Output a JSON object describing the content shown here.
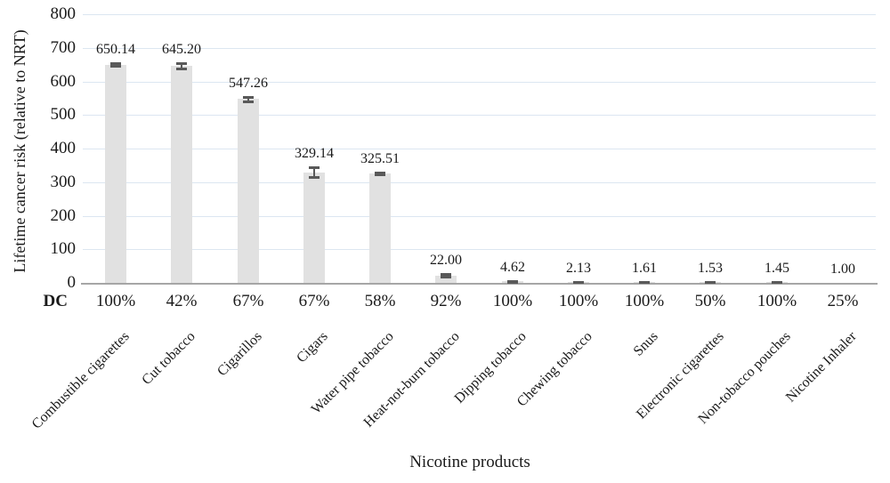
{
  "chart_data": {
    "type": "bar",
    "title": "",
    "xlabel": "Nicotine products",
    "ylabel": "Lifetime cancer risk (relative to NRT)",
    "ylim": [
      0,
      800
    ],
    "yticks": [
      0,
      100,
      200,
      300,
      400,
      500,
      600,
      700,
      800
    ],
    "grid": true,
    "legend": "none",
    "categories": [
      "Combustible cigarettes",
      "Cut tobacco",
      "Cigarillos",
      "Cigars",
      "Water pipe tobacco",
      "Heat-not-burn tobacco",
      "Dipping tobacco",
      "Chewing tobacco",
      "Snus",
      "Electronic cigarettes",
      "Non-tobacco pouches",
      "Nicotine Inhaler"
    ],
    "values": [
      650.14,
      645.2,
      547.26,
      329.14,
      325.51,
      22.0,
      4.62,
      2.13,
      1.61,
      1.53,
      1.45,
      1.0
    ],
    "value_labels": [
      "650.14",
      "645.20",
      "547.26",
      "329.14",
      "325.51",
      "22.00",
      "4.62",
      "2.13",
      "1.61",
      "1.53",
      "1.45",
      "1.00"
    ],
    "error_bars": [
      5,
      8,
      6,
      15,
      3,
      4,
      1.5,
      1,
      1,
      1,
      1,
      0
    ],
    "dc_row": {
      "label": "DC",
      "values": [
        "100%",
        "42%",
        "67%",
        "67%",
        "58%",
        "92%",
        "100%",
        "100%",
        "100%",
        "50%",
        "100%",
        "25%"
      ]
    },
    "colors": {
      "bar_fill": "#e1e1e1",
      "error_bar": "#595959",
      "gridline": "#dce6f1",
      "axis_line": "#a6a6a6",
      "text": "#1a1a1a"
    }
  }
}
